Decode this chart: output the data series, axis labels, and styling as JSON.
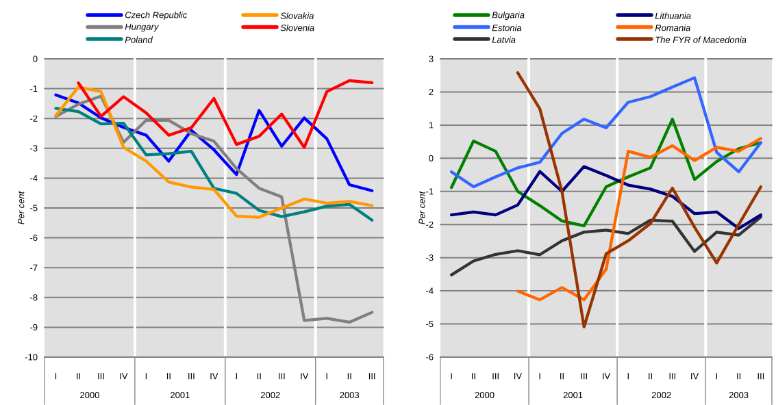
{
  "chart_data": [
    {
      "type": "line",
      "ylabel": "Per cent",
      "ylim": [
        -10,
        0
      ],
      "yticks": [
        -10,
        -9,
        -8,
        -7,
        -6,
        -5,
        -4,
        -3,
        -2,
        -1,
        0
      ],
      "grid": "y",
      "legend": "top",
      "marker": "none",
      "line_style": "solid",
      "categories": [
        "I",
        "II",
        "III",
        "IV",
        "I",
        "II",
        "III",
        "IV",
        "I",
        "II",
        "III",
        "IV",
        "I",
        "II",
        "III"
      ],
      "annotations": [
        "2000",
        "2001",
        "2002",
        "2003"
      ],
      "series": [
        {
          "name": "Czech Republic",
          "color": "#0000ff",
          "values": [
            -1.21,
            -1.48,
            -1.98,
            -2.3,
            -2.56,
            -3.43,
            -2.4,
            -3.05,
            -3.88,
            -1.73,
            -2.93,
            -1.98,
            -2.68,
            -4.22,
            -4.42
          ]
        },
        {
          "name": "Hungary",
          "color": "#808080",
          "values": [
            -1.93,
            -1.52,
            -1.25,
            -2.8,
            -2.06,
            -2.06,
            -2.51,
            -2.76,
            -3.68,
            -4.34,
            -4.63,
            -8.77,
            -8.7,
            -8.83,
            -8.5
          ]
        },
        {
          "name": "Poland",
          "color": "#008080",
          "values": [
            -1.66,
            -1.77,
            -2.18,
            -2.16,
            -3.22,
            -3.18,
            -3.1,
            -4.34,
            -4.51,
            -5.08,
            -5.29,
            -5.13,
            -4.94,
            -4.88,
            -5.41
          ]
        },
        {
          "name": "Slovakia",
          "color": "#ff9900",
          "values": [
            -1.9,
            -0.95,
            -1.1,
            -2.97,
            -3.43,
            -4.13,
            -4.3,
            -4.38,
            -5.27,
            -5.31,
            -5.0,
            -4.7,
            -4.84,
            -4.78,
            -4.92
          ]
        },
        {
          "name": "Slovenia",
          "color": "#ff0000",
          "values": [
            null,
            -0.81,
            -1.93,
            -1.27,
            -1.81,
            -2.56,
            -2.31,
            -1.33,
            -2.87,
            -2.6,
            -1.85,
            -2.97,
            -1.1,
            -0.73,
            -0.8
          ]
        }
      ]
    },
    {
      "type": "line",
      "ylabel": "Per cent",
      "ylim": [
        -6,
        3
      ],
      "yticks": [
        -6,
        -5,
        -4,
        -3,
        -2,
        -1,
        0,
        1,
        2,
        3
      ],
      "grid": "y",
      "legend": "top",
      "marker": "none",
      "line_style": "solid",
      "categories": [
        "I",
        "II",
        "III",
        "IV",
        "I",
        "II",
        "III",
        "IV",
        "I",
        "II",
        "III",
        "IV",
        "I",
        "II",
        "III"
      ],
      "annotations": [
        "2000",
        "2001",
        "2002",
        "2003"
      ],
      "series": [
        {
          "name": "Bulgaria",
          "color": "#008000",
          "values": [
            -0.88,
            0.52,
            0.21,
            -1.0,
            -1.43,
            -1.89,
            -2.04,
            -0.86,
            -0.56,
            -0.29,
            1.18,
            -0.64,
            -0.1,
            0.29,
            0.47
          ]
        },
        {
          "name": "Estonia",
          "color": "#3366ff",
          "values": [
            -0.41,
            -0.86,
            -0.56,
            -0.29,
            -0.12,
            0.75,
            1.18,
            0.92,
            1.69,
            1.86,
            2.15,
            2.43,
            0.18,
            -0.41,
            0.47
          ]
        },
        {
          "name": "Latvia",
          "color": "#333333",
          "values": [
            -3.52,
            -3.1,
            -2.9,
            -2.79,
            -2.91,
            -2.49,
            -2.23,
            -2.17,
            -2.27,
            -1.87,
            -1.9,
            -2.81,
            -2.23,
            -2.32,
            -1.77
          ]
        },
        {
          "name": "Lithuania",
          "color": "#000080",
          "values": [
            -1.71,
            -1.62,
            -1.71,
            -1.41,
            -0.4,
            -1.0,
            -0.25,
            -0.52,
            -0.81,
            -0.93,
            -1.15,
            -1.67,
            -1.62,
            -2.12,
            -1.71
          ]
        },
        {
          "name": "Romania",
          "color": "#ff6600",
          "values": [
            null,
            null,
            null,
            -4.01,
            -4.27,
            -3.9,
            -4.27,
            -3.35,
            0.21,
            0.03,
            0.38,
            -0.07,
            0.33,
            0.21,
            0.6
          ]
        },
        {
          "name": "The FYR of Macedonia",
          "color": "#993300",
          "values": [
            null,
            null,
            null,
            2.58,
            1.49,
            -1.0,
            -5.09,
            -2.88,
            -2.49,
            -1.97,
            -0.9,
            -2.08,
            -3.16,
            -2.0,
            -0.86
          ]
        }
      ]
    }
  ]
}
